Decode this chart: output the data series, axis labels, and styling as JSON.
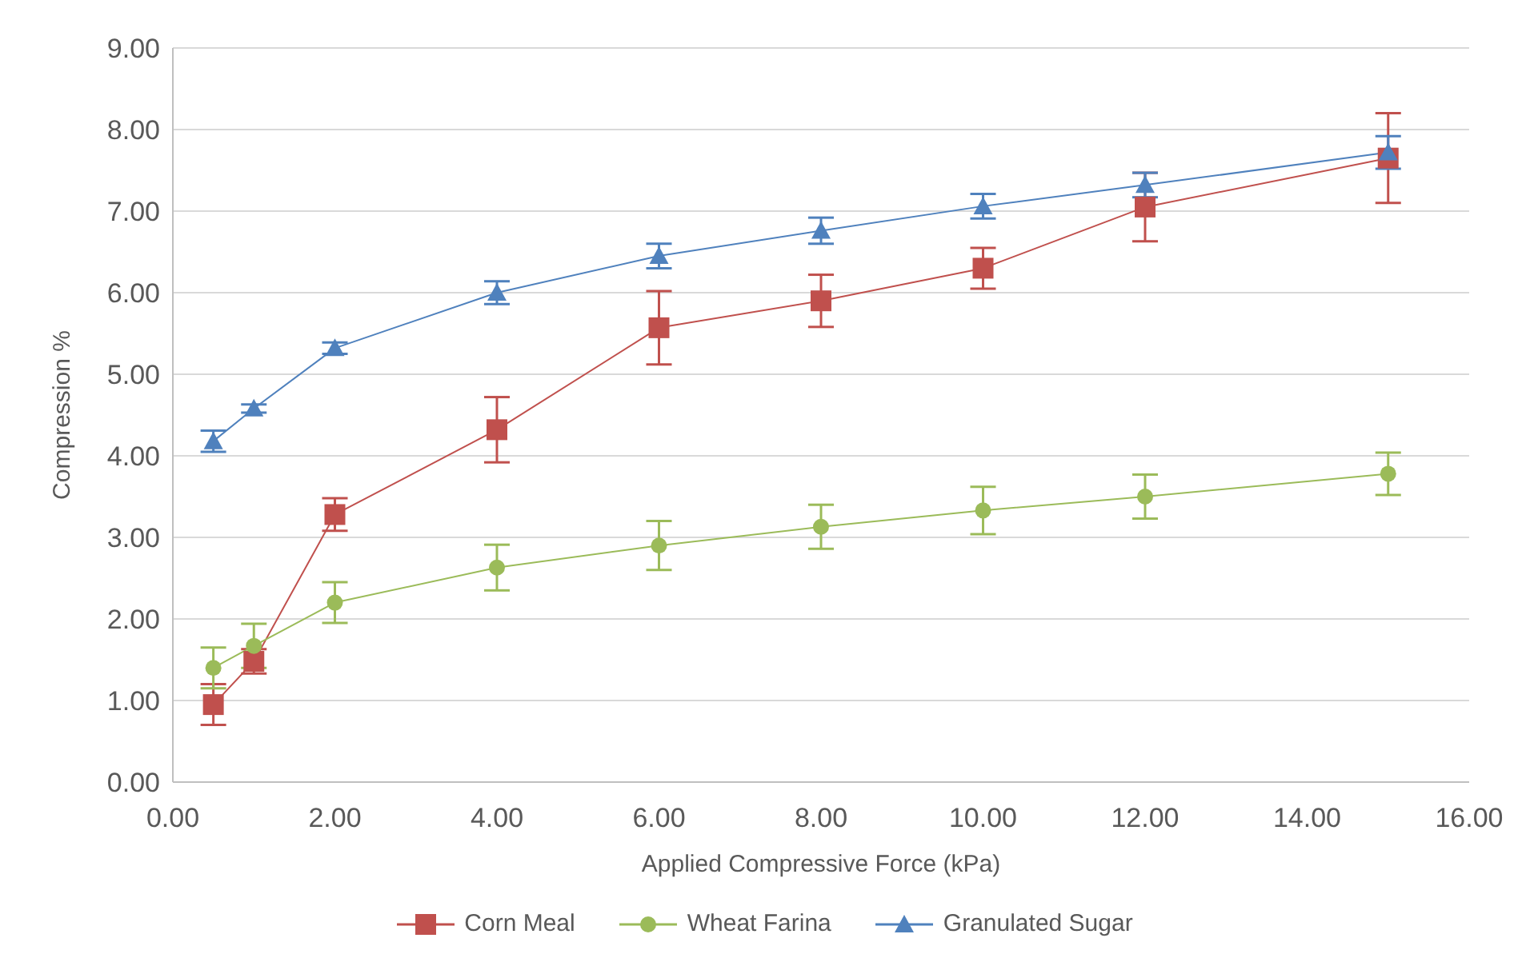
{
  "chart_data": {
    "type": "line",
    "xlabel": "Applied Compressive Force (kPa)",
    "ylabel": "Compression %",
    "x": [
      0.5,
      1,
      2,
      4,
      6,
      8,
      10,
      12,
      15
    ],
    "xlim": [
      0,
      16
    ],
    "xticks": [
      {
        "value": 0,
        "label": "0.00"
      },
      {
        "value": 2,
        "label": "2.00"
      },
      {
        "value": 4,
        "label": "4.00"
      },
      {
        "value": 6,
        "label": "6.00"
      },
      {
        "value": 8,
        "label": "8.00"
      },
      {
        "value": 10,
        "label": "10.00"
      },
      {
        "value": 12,
        "label": "12.00"
      },
      {
        "value": 14,
        "label": "14.00"
      },
      {
        "value": 16,
        "label": "16.00"
      }
    ],
    "ylim": [
      0,
      9
    ],
    "yticks": [
      {
        "value": 0,
        "label": "0.00"
      },
      {
        "value": 1,
        "label": "1.00"
      },
      {
        "value": 2,
        "label": "2.00"
      },
      {
        "value": 3,
        "label": "3.00"
      },
      {
        "value": 4,
        "label": "4.00"
      },
      {
        "value": 5,
        "label": "5.00"
      },
      {
        "value": 6,
        "label": "6.00"
      },
      {
        "value": 7,
        "label": "7.00"
      },
      {
        "value": 8,
        "label": "8.00"
      },
      {
        "value": 9,
        "label": "9.00"
      }
    ],
    "grid": "y",
    "legend": "bottom",
    "line_style": "solid",
    "series": [
      {
        "name": "Corn Meal",
        "color": "#c0504d",
        "marker": "square",
        "values": [
          0.95,
          1.48,
          3.28,
          4.32,
          5.57,
          5.9,
          6.3,
          7.05,
          7.65
        ],
        "errors": [
          0.25,
          0.15,
          0.2,
          0.4,
          0.45,
          0.32,
          0.25,
          0.42,
          0.55
        ]
      },
      {
        "name": "Wheat Farina",
        "color": "#9bbb59",
        "marker": "circle",
        "values": [
          1.4,
          1.67,
          2.2,
          2.63,
          2.9,
          3.13,
          3.33,
          3.5,
          3.78
        ],
        "errors": [
          0.25,
          0.27,
          0.25,
          0.28,
          0.3,
          0.27,
          0.29,
          0.27,
          0.26
        ]
      },
      {
        "name": "Granulated Sugar",
        "color": "#4f81bd",
        "marker": "triangle",
        "values": [
          4.18,
          4.58,
          5.32,
          6.0,
          6.45,
          6.76,
          7.06,
          7.32,
          7.72
        ],
        "errors": [
          0.13,
          0.05,
          0.07,
          0.14,
          0.15,
          0.16,
          0.15,
          0.15,
          0.2
        ]
      }
    ]
  }
}
